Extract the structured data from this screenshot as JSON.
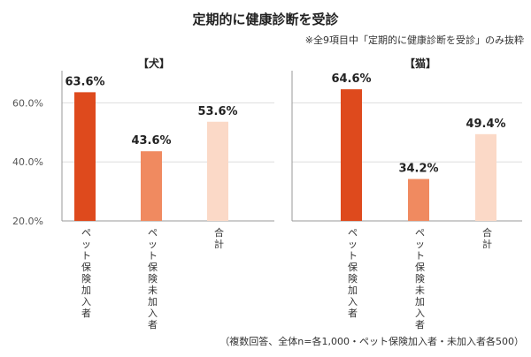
{
  "title": "定期的に健康診断を受診",
  "note": "※全9項目中「定期的に健康診断を受診」のみ抜粋",
  "footnote": "（複数回答、全体n=各1,000・ペット保険加入者・未加入者各500）",
  "colors": {
    "dark": "#de4a1d",
    "mid": "#f08a60",
    "light": "#fbd9c7",
    "grid": "#dddddd",
    "axis": "#999999"
  },
  "chart_data": [
    {
      "type": "bar",
      "title": "【犬】",
      "categories": [
        "ペット保険加入者",
        "ペット保険未加入者",
        "合計"
      ],
      "values": [
        63.6,
        43.6,
        53.6
      ],
      "value_labels": [
        "63.6%",
        "43.6%",
        "53.6%"
      ],
      "yticks": [
        "60.0%",
        "40.0%",
        "20.0%"
      ],
      "ytick_values": [
        60,
        40,
        20
      ],
      "ylim": [
        20,
        70
      ],
      "unit": "%",
      "grid": true,
      "legend": "none"
    },
    {
      "type": "bar",
      "title": "【猫】",
      "categories": [
        "ペット保険加入者",
        "ペット保険未加入者",
        "合計"
      ],
      "values": [
        64.6,
        34.2,
        49.4
      ],
      "value_labels": [
        "64.6%",
        "34.2%",
        "49.4%"
      ],
      "ylim": [
        20,
        70
      ],
      "unit": "%",
      "grid": true,
      "legend": "none"
    }
  ]
}
